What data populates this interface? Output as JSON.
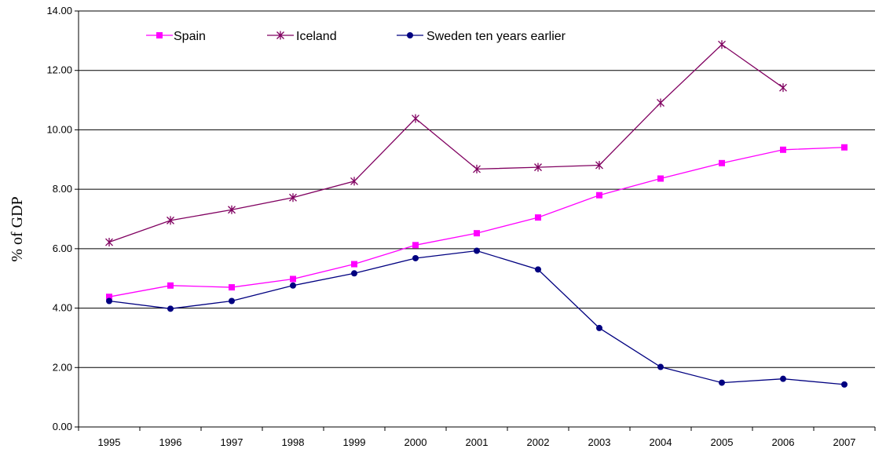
{
  "chart_data": {
    "type": "line",
    "title": "",
    "xlabel": "",
    "ylabel": "% of GDP",
    "categories": [
      "1995",
      "1996",
      "1997",
      "1998",
      "1999",
      "2000",
      "2001",
      "2002",
      "2003",
      "2004",
      "2005",
      "2006",
      "2007"
    ],
    "ylim": [
      0,
      14
    ],
    "yticks": [
      "0.00",
      "2.00",
      "4.00",
      "6.00",
      "8.00",
      "10.00",
      "12.00",
      "14.00"
    ],
    "grid": "horizontal",
    "legend": "top-left",
    "series": [
      {
        "name": "Spain",
        "color": "#ff00ff",
        "marker": "square",
        "values": [
          4.38,
          4.76,
          4.7,
          4.98,
          5.48,
          6.12,
          6.52,
          7.05,
          7.8,
          8.36,
          8.88,
          9.33,
          9.41
        ]
      },
      {
        "name": "Iceland",
        "color": "#800060",
        "marker": "star",
        "values": [
          6.22,
          6.95,
          7.31,
          7.72,
          8.27,
          10.38,
          8.68,
          8.74,
          8.81,
          10.91,
          12.87,
          11.42,
          null
        ]
      },
      {
        "name": "Sweden ten years earlier",
        "color": "#000080",
        "marker": "circle",
        "values": [
          4.24,
          3.98,
          4.24,
          4.76,
          5.17,
          5.68,
          5.93,
          5.3,
          3.33,
          2.02,
          1.49,
          1.62,
          1.43
        ]
      }
    ]
  }
}
